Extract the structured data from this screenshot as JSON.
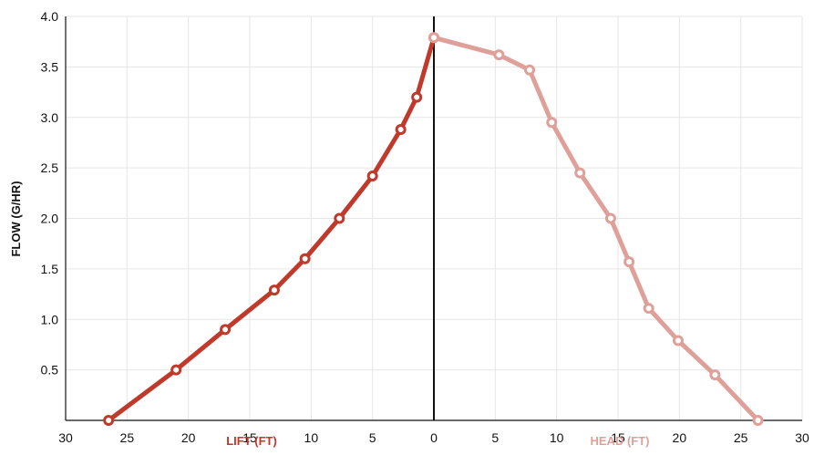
{
  "chart_data": {
    "type": "line",
    "ylabel": "FLOW (G/HR)",
    "ylim": [
      0,
      4.0
    ],
    "yticks": [
      "0.5",
      "1.0",
      "1.5",
      "2.0",
      "2.5",
      "3.0",
      "3.5",
      "4.0"
    ],
    "xlim": [
      -30,
      30
    ],
    "xticks": [
      "30",
      "25",
      "20",
      "15",
      "10",
      "5",
      "0",
      "5",
      "10",
      "15",
      "20",
      "25",
      "30"
    ],
    "grid": true,
    "lift_label": "LIFT (FT)",
    "head_label": "HEAD (FT)",
    "colors": {
      "lift": "#c0392b",
      "head": "#e0a09a"
    },
    "series": [
      {
        "x": [
          26.5,
          21,
          17,
          13,
          10.5,
          7.7,
          5,
          2.7,
          1.4,
          0
        ],
        "y": [
          0,
          0.5,
          0.9,
          1.29,
          1.6,
          2.0,
          2.42,
          2.88,
          3.2,
          3.79
        ]
      },
      {
        "x": [
          0,
          5.3,
          7.8,
          9.6,
          11.9,
          14.4,
          15.9,
          17.5,
          19.9,
          22.9,
          26.4
        ],
        "y": [
          3.79,
          3.62,
          3.47,
          2.95,
          2.45,
          2.0,
          1.57,
          1.11,
          0.79,
          0.45,
          0
        ]
      }
    ]
  }
}
